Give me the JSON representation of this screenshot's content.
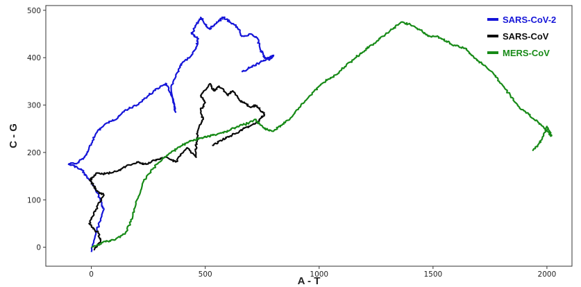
{
  "chart_data": {
    "type": "line",
    "title": "",
    "xlabel": "A - T",
    "ylabel": "C - G",
    "xlim": [
      -200,
      2110
    ],
    "ylim": [
      -40,
      510
    ],
    "xticks": [
      0,
      500,
      1000,
      1500,
      2000
    ],
    "yticks": [
      0,
      100,
      200,
      300,
      400,
      500
    ],
    "grid": false,
    "legend": "top-right",
    "series": [
      {
        "name": "SARS-CoV-2",
        "color": "#1515d8",
        "x": [
          0,
          20,
          55,
          40,
          10,
          -20,
          -45,
          -100,
          -60,
          -30,
          -10,
          20,
          60,
          110,
          150,
          200,
          250,
          290,
          330,
          360,
          370,
          350,
          380,
          400,
          440,
          460,
          470,
          440,
          460,
          480,
          500,
          520,
          550,
          580,
          610,
          640,
          660,
          700,
          730,
          740,
          760,
          780,
          800,
          780,
          740,
          700,
          660
        ],
        "y": [
          -10,
          30,
          80,
          100,
          130,
          150,
          165,
          175,
          178,
          190,
          210,
          240,
          260,
          270,
          290,
          300,
          320,
          335,
          345,
          310,
          285,
          340,
          370,
          390,
          405,
          420,
          440,
          450,
          470,
          485,
          470,
          460,
          475,
          485,
          475,
          465,
          445,
          450,
          440,
          420,
          400,
          395,
          405,
          400,
          390,
          380,
          370
        ]
      },
      {
        "name": "SARS-CoV",
        "color": "#0b0b0b",
        "x": [
          10,
          40,
          30,
          -10,
          20,
          55,
          20,
          10,
          -5,
          5,
          20,
          60,
          110,
          150,
          200,
          240,
          290,
          330,
          370,
          420,
          460,
          460,
          470,
          490,
          480,
          500,
          480,
          520,
          540,
          560,
          600,
          620,
          650,
          670,
          700,
          720,
          740,
          760,
          730,
          690,
          650,
          610,
          570,
          530
        ],
        "y": [
          -5,
          10,
          30,
          50,
          80,
          110,
          120,
          130,
          140,
          148,
          155,
          155,
          160,
          170,
          180,
          175,
          185,
          190,
          180,
          210,
          190,
          220,
          250,
          270,
          290,
          305,
          320,
          345,
          330,
          340,
          320,
          330,
          310,
          305,
          295,
          300,
          290,
          280,
          265,
          255,
          245,
          235,
          225,
          215
        ]
      },
      {
        "name": "MERS-CoV",
        "color": "#178a17",
        "x": [
          0,
          50,
          100,
          150,
          180,
          200,
          230,
          270,
          310,
          350,
          400,
          440,
          480,
          520,
          560,
          600,
          640,
          680,
          720,
          760,
          800,
          840,
          880,
          920,
          960,
          1000,
          1040,
          1080,
          1120,
          1160,
          1200,
          1240,
          1280,
          1320,
          1360,
          1400,
          1440,
          1480,
          1520,
          1560,
          1600,
          1640,
          1680,
          1720,
          1760,
          1800,
          1840,
          1880,
          1920,
          1960,
          1990,
          2010,
          2020,
          2000,
          1980,
          1960,
          1940
        ],
        "y": [
          0,
          10,
          15,
          30,
          60,
          100,
          140,
          165,
          185,
          200,
          215,
          225,
          230,
          235,
          240,
          245,
          255,
          260,
          270,
          250,
          245,
          260,
          275,
          300,
          320,
          340,
          355,
          365,
          385,
          400,
          415,
          430,
          445,
          460,
          475,
          470,
          460,
          445,
          445,
          435,
          425,
          420,
          400,
          385,
          370,
          345,
          320,
          295,
          280,
          265,
          250,
          240,
          235,
          255,
          230,
          215,
          205
        ]
      }
    ]
  }
}
